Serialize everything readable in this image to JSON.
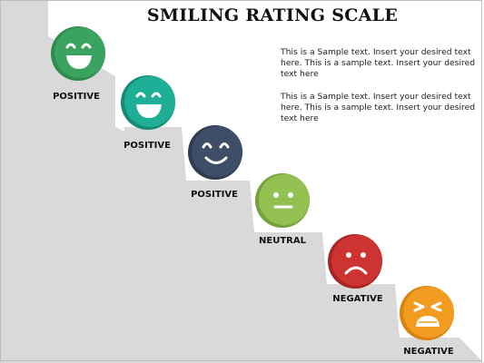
{
  "title": "SMILING RATING SCALE",
  "paragraphs": [
    "This is a Sample text. Insert your desired text here. This is a sample text. Insert your desired text here",
    "This is a Sample text. Insert your desired text here. This is a sample text. Insert your desired text here"
  ],
  "scale": [
    {
      "label": "POSITIVE",
      "mood": "laughing",
      "color": "#2e8b4e"
    },
    {
      "label": "POSITIVE",
      "mood": "laughing",
      "color": "#1da38c"
    },
    {
      "label": "POSITIVE",
      "mood": "happy",
      "color": "#3b4a63"
    },
    {
      "label": "NEUTRAL",
      "mood": "neutral",
      "color": "#8ab84b"
    },
    {
      "label": "NEGATIVE",
      "mood": "sad",
      "color": "#c7302e"
    },
    {
      "label": "NEGATIVE",
      "mood": "crying",
      "color": "#f0971e"
    }
  ],
  "stair_color": "#d9d9d9"
}
